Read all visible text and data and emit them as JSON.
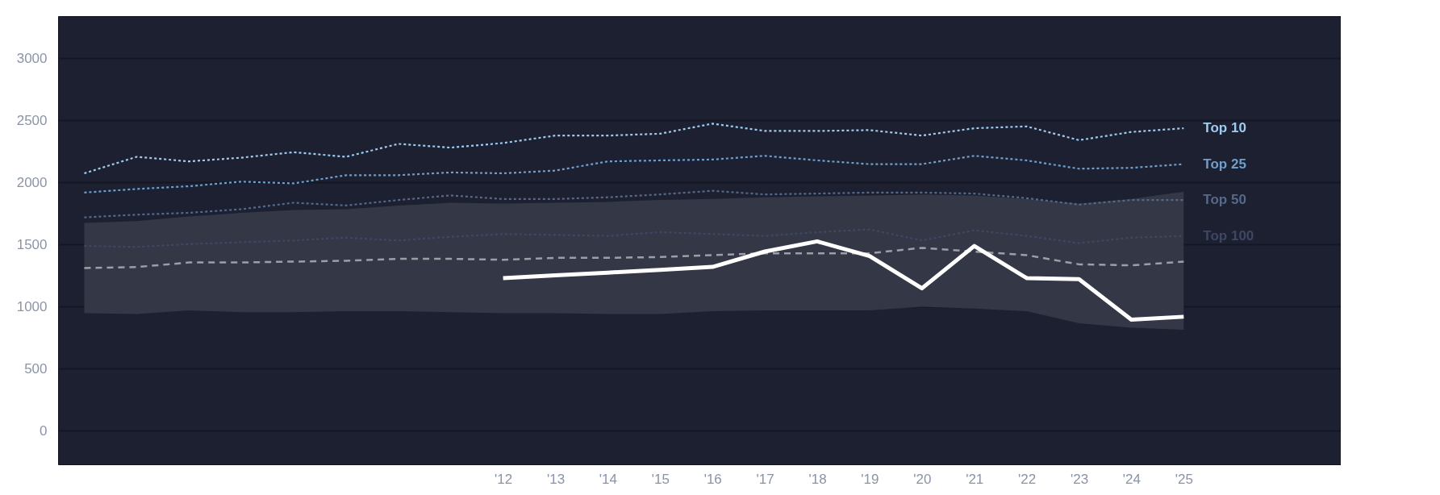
{
  "chart_data": {
    "type": "line",
    "x": [
      2004,
      2005,
      2006,
      2007,
      2008,
      2009,
      2010,
      2011,
      2012,
      2013,
      2014,
      2015,
      2016,
      2017,
      2018,
      2019,
      2020,
      2021,
      2022,
      2023,
      2024,
      2025
    ],
    "xlim": [
      2003.5,
      2028
    ],
    "xticks": [
      {
        "value": 2012,
        "label": "'12"
      },
      {
        "value": 2013,
        "label": "'13"
      },
      {
        "value": 2014,
        "label": "'14"
      },
      {
        "value": 2015,
        "label": "'15"
      },
      {
        "value": 2016,
        "label": "'16"
      },
      {
        "value": 2017,
        "label": "'17"
      },
      {
        "value": 2018,
        "label": "'18"
      },
      {
        "value": 2019,
        "label": "'19"
      },
      {
        "value": 2020,
        "label": "'20"
      },
      {
        "value": 2021,
        "label": "'21"
      },
      {
        "value": 2022,
        "label": "'22"
      },
      {
        "value": 2023,
        "label": "'23"
      },
      {
        "value": 2024,
        "label": "'24"
      },
      {
        "value": 2025,
        "label": "'25"
      }
    ],
    "ylim": [
      -270,
      3340
    ],
    "yticks": [
      0,
      500,
      1000,
      1500,
      2000,
      2500,
      3000
    ],
    "grid": "y",
    "series": [
      {
        "color": "#9e9fa6",
        "line_style": "dashed",
        "values": [
          1311,
          1319,
          1356,
          1356,
          1363,
          1370,
          1385,
          1385,
          1378,
          1393,
          1393,
          1400,
          1415,
          1430,
          1430,
          1430,
          1474,
          1444,
          1415,
          1341,
          1333,
          1363
        ],
        "lower": [
          948,
          941,
          970,
          956,
          956,
          963,
          963,
          956,
          948,
          948,
          941,
          941,
          963,
          970,
          970,
          970,
          1000,
          985,
          963,
          867,
          830,
          815
        ],
        "upper": [
          1674,
          1689,
          1726,
          1756,
          1778,
          1785,
          1815,
          1837,
          1830,
          1837,
          1844,
          1859,
          1867,
          1881,
          1889,
          1896,
          1904,
          1896,
          1867,
          1830,
          1867,
          1926
        ]
      },
      {
        "name": "Top 10",
        "color": "#9ecbf0",
        "line_style": "dotted",
        "values": [
          2074,
          2207,
          2170,
          2200,
          2244,
          2207,
          2311,
          2281,
          2318,
          2378,
          2378,
          2393,
          2474,
          2415,
          2415,
          2422,
          2378,
          2437,
          2452,
          2341,
          2407,
          2437
        ]
      },
      {
        "name": "Top 25",
        "color": "#6f9fcc",
        "line_style": "dotted",
        "values": [
          1919,
          1948,
          1970,
          2007,
          1993,
          2059,
          2059,
          2081,
          2074,
          2096,
          2170,
          2178,
          2185,
          2215,
          2178,
          2148,
          2148,
          2215,
          2178,
          2111,
          2118,
          2148
        ]
      },
      {
        "name": "Top 50",
        "color": "#56698a",
        "line_style": "dotted",
        "values": [
          1719,
          1741,
          1756,
          1785,
          1837,
          1815,
          1859,
          1896,
          1867,
          1867,
          1881,
          1904,
          1933,
          1904,
          1911,
          1919,
          1919,
          1911,
          1874,
          1822,
          1859,
          1859
        ]
      },
      {
        "name": "Top 100",
        "color": "#3f4862",
        "line_style": "dotted",
        "values": [
          1489,
          1481,
          1504,
          1519,
          1533,
          1556,
          1533,
          1563,
          1585,
          1578,
          1570,
          1600,
          1585,
          1570,
          1600,
          1622,
          1533,
          1615,
          1570,
          1511,
          1556,
          1570
        ]
      },
      {
        "color": "#ffffff",
        "line_style": "solid",
        "values": [
          null,
          null,
          null,
          null,
          null,
          null,
          null,
          null,
          1230,
          1252,
          1274,
          1297,
          1320,
          1444,
          1526,
          1407,
          1148,
          1489,
          1230,
          1222,
          896,
          919
        ]
      }
    ]
  }
}
